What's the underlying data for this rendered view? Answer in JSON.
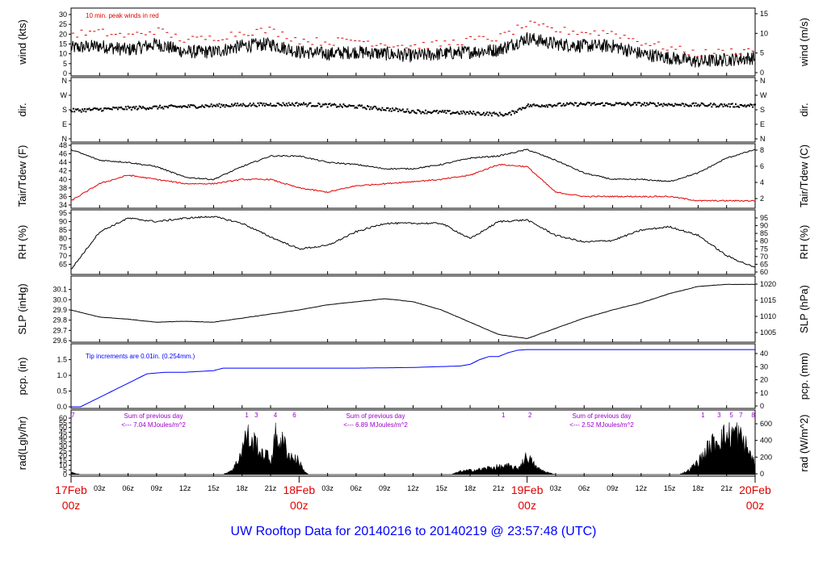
{
  "title": "UW Rooftop Data for 20140216  to  20140219 @ 23:57:48  (UTC)",
  "colors": {
    "axis": "#000000",
    "red": "#e00000",
    "blue": "#0000ff",
    "purple": "#9a00cc",
    "date_red": "#e00000"
  },
  "chart_data": {
    "type": "line",
    "time_axis": {
      "range_hours": [
        0,
        72
      ],
      "hour_ticks": [
        "03z",
        "06z",
        "09z",
        "12z",
        "15z",
        "18z",
        "21z",
        "03z",
        "06z",
        "09z",
        "12z",
        "15z",
        "18z",
        "21z",
        "03z",
        "06z",
        "09z",
        "12z",
        "15z",
        "18z",
        "21z"
      ],
      "hour_tick_positions": [
        3,
        6,
        9,
        12,
        15,
        18,
        21,
        27,
        30,
        33,
        36,
        39,
        42,
        45,
        51,
        54,
        57,
        60,
        63,
        66,
        69
      ],
      "date_labels": [
        {
          "date": "17Feb",
          "time": "00z",
          "hour": 0
        },
        {
          "date": "18Feb",
          "time": "00z",
          "hour": 24
        },
        {
          "date": "19Feb",
          "time": "00z",
          "hour": 48
        },
        {
          "date": "20Feb",
          "time": "00z",
          "hour": 72
        }
      ]
    },
    "panels": [
      {
        "id": "wind",
        "left_label": "wind (kts)",
        "right_label": "wind (m/s)",
        "left_ticks": [
          "0",
          "5",
          "10",
          "15",
          "20",
          "25",
          "30"
        ],
        "left_range": [
          0,
          30
        ],
        "right_ticks": [
          "0",
          "5",
          "10",
          "15"
        ],
        "annotation": "10 min. peak winds in red",
        "series": [
          {
            "name": "wind speed (kts)",
            "color": "#000000",
            "x": [
              0,
              3,
              6,
              9,
              12,
              15,
              18,
              21,
              24,
              27,
              30,
              33,
              36,
              39,
              42,
              45,
              48,
              51,
              54,
              57,
              60,
              63,
              66,
              69,
              72
            ],
            "y": [
              13,
              14,
              12,
              15,
              11,
              11,
              14,
              15,
              11,
              10,
              11,
              10,
              9,
              10,
              11,
              12,
              18,
              15,
              14,
              14,
              10,
              8,
              6,
              7,
              8
            ]
          },
          {
            "name": "10 min peak (kts)",
            "color": "#e00000",
            "x": [
              0,
              3,
              6,
              9,
              12,
              15,
              18,
              21,
              24,
              27,
              30,
              33,
              36,
              39,
              42,
              45,
              48,
              51,
              54,
              57,
              60,
              63,
              66,
              69,
              72
            ],
            "y": [
              20,
              21,
              19,
              22,
              17,
              18,
              21,
              22,
              17,
              16,
              17,
              15,
              14,
              15,
              17,
              18,
              25,
              22,
              21,
              21,
              16,
              13,
              10,
              11,
              12
            ]
          }
        ]
      },
      {
        "id": "dir",
        "left_label": "dir.",
        "right_label": "dir.",
        "left_ticks": [
          "N",
          "E",
          "S",
          "W",
          "N"
        ],
        "left_range": [
          0,
          360
        ],
        "right_ticks": [
          "N",
          "E",
          "S",
          "W",
          "N"
        ],
        "series": [
          {
            "name": "wind direction (deg)",
            "color": "#000000",
            "x": [
              0,
              6,
              12,
              18,
              24,
              30,
              36,
              42,
              46,
              48,
              54,
              60,
              66,
              72
            ],
            "y": [
              175,
              190,
              200,
              210,
              215,
              200,
              170,
              160,
              150,
              205,
              215,
              215,
              210,
              205
            ]
          }
        ]
      },
      {
        "id": "temp",
        "left_label": "Tair/Tdew (F)",
        "right_label": "Tair/Tdew (C)",
        "left_ticks": [
          "34",
          "36",
          "38",
          "40",
          "42",
          "44",
          "46",
          "48"
        ],
        "left_range": [
          34,
          48
        ],
        "right_ticks": [
          "2",
          "4",
          "6",
          "8"
        ],
        "series": [
          {
            "name": "Tair (F)",
            "color": "#000000",
            "x": [
              0,
              3,
              6,
              9,
              12,
              15,
              18,
              21,
              24,
              27,
              30,
              33,
              36,
              39,
              42,
              45,
              48,
              51,
              54,
              57,
              60,
              63,
              66,
              69,
              72
            ],
            "y": [
              47,
              44.5,
              44,
              43,
              40.5,
              40,
              43,
              45.5,
              45.5,
              44,
              43.5,
              42.5,
              42.5,
              43.5,
              45,
              45.5,
              47,
              44.5,
              41.5,
              40,
              40,
              39.5,
              41.5,
              45,
              47
            ]
          },
          {
            "name": "Tdew (F)",
            "color": "#e00000",
            "x": [
              0,
              3,
              6,
              9,
              12,
              15,
              18,
              21,
              24,
              27,
              30,
              33,
              36,
              39,
              42,
              45,
              48,
              51,
              54,
              57,
              60,
              63,
              66,
              69,
              72
            ],
            "y": [
              35,
              39,
              41,
              40,
              39,
              39,
              40,
              40,
              38,
              37,
              38.5,
              39,
              39.5,
              40,
              41,
              43.5,
              43,
              37,
              36,
              36,
              36,
              36,
              35,
              35,
              35
            ]
          }
        ]
      },
      {
        "id": "rh",
        "left_label": "RH (%)",
        "right_label": "RH (%)",
        "left_ticks": [
          "65",
          "70",
          "75",
          "80",
          "85",
          "90",
          "95"
        ],
        "left_range": [
          60,
          95
        ],
        "right_ticks": [
          "60",
          "65",
          "70",
          "75",
          "80",
          "85",
          "90",
          "95"
        ],
        "series": [
          {
            "name": "RH (%)",
            "color": "#000000",
            "x": [
              0,
              3,
              6,
              9,
              12,
              15,
              18,
              21,
              24,
              27,
              30,
              33,
              36,
              39,
              42,
              45,
              48,
              51,
              54,
              57,
              60,
              63,
              66,
              69,
              72
            ],
            "y": [
              62,
              84,
              92,
              90,
              92,
              93,
              89,
              81,
              74,
              76,
              84,
              89,
              89,
              89,
              80,
              90,
              91,
              82,
              78,
              79,
              85,
              87,
              82,
              70,
              63
            ]
          }
        ]
      },
      {
        "id": "slp",
        "left_label": "SLP (inHg)",
        "right_label": "SLP (hPa)",
        "left_ticks": [
          "29.6",
          "29.7",
          "29.8",
          "29.9",
          "30.0",
          "30.1"
        ],
        "left_range": [
          29.6,
          30.2
        ],
        "right_ticks": [
          "1005",
          "1010",
          "1015",
          "1020"
        ],
        "series": [
          {
            "name": "SLP (inHg)",
            "color": "#000000",
            "x": [
              0,
              3,
              6,
              9,
              12,
              15,
              18,
              21,
              24,
              27,
              30,
              33,
              36,
              39,
              42,
              45,
              48,
              51,
              54,
              57,
              60,
              63,
              66,
              69,
              72
            ],
            "y": [
              29.9,
              29.83,
              29.81,
              29.78,
              29.79,
              29.78,
              29.82,
              29.86,
              29.9,
              29.95,
              29.98,
              30.01,
              29.98,
              29.9,
              29.78,
              29.66,
              29.62,
              29.72,
              29.82,
              29.9,
              29.97,
              30.06,
              30.13,
              30.15,
              30.15
            ]
          }
        ]
      },
      {
        "id": "pcp",
        "left_label": "pcp. (in)",
        "right_label": "pcp. (mm)",
        "left_ticks": [
          "0.0",
          "0.5",
          "1.0",
          "1.5"
        ],
        "left_range": [
          0,
          1.9
        ],
        "right_ticks": [
          "0",
          "10",
          "20",
          "30",
          "40"
        ],
        "annotation": "Tip increments are 0.01in. (0.254mm.)",
        "series": [
          {
            "name": "cumulative precipitation (in)",
            "color": "#0000ff",
            "x": [
              0,
              1,
              3,
              6,
              8,
              10,
              12,
              15,
              16,
              20,
              24,
              30,
              36,
              41,
              42,
              43,
              44,
              45,
              46,
              47,
              48,
              60,
              72
            ],
            "y": [
              0,
              0,
              0.3,
              0.75,
              1.05,
              1.1,
              1.1,
              1.15,
              1.23,
              1.23,
              1.23,
              1.23,
              1.25,
              1.3,
              1.35,
              1.5,
              1.6,
              1.6,
              1.72,
              1.8,
              1.82,
              1.82,
              1.82
            ]
          }
        ]
      },
      {
        "id": "rad",
        "left_label": "rad(Lgly/hr)",
        "right_label": "rad (W/m^2)",
        "left_ticks": [
          "0",
          "5",
          "10",
          "15",
          "20",
          "25",
          "30",
          "35",
          "40",
          "45",
          "50",
          "55",
          "60"
        ],
        "left_range": [
          0,
          60
        ],
        "right_ticks": [
          "0",
          "200",
          "400",
          "600"
        ],
        "daily_sums": [
          {
            "label": "Sum of previous day",
            "value": "<--- 7.04 MJoules/m^2"
          },
          {
            "label": "Sum of previous day",
            "value": "<--- 6.89 MJoules/m^2"
          },
          {
            "label": "Sum of previous day",
            "value": "<--- 2.52 MJoules/m^2"
          }
        ],
        "tip_markers": [
          {
            "hour": 0.2,
            "label": "7"
          },
          {
            "hour": 18.5,
            "label": "1"
          },
          {
            "hour": 19.5,
            "label": "3"
          },
          {
            "hour": 21.5,
            "label": "4"
          },
          {
            "hour": 23.5,
            "label": "6"
          },
          {
            "hour": 45.5,
            "label": "1"
          },
          {
            "hour": 48.3,
            "label": "2"
          },
          {
            "hour": 66.5,
            "label": "1"
          },
          {
            "hour": 68.2,
            "label": "3"
          },
          {
            "hour": 69.5,
            "label": "5"
          },
          {
            "hour": 70.5,
            "label": "7"
          },
          {
            "hour": 71.8,
            "label": "8"
          }
        ],
        "series": [
          {
            "name": "solar radiation (Lgly/hr)",
            "color": "#000000",
            "x": [
              0,
              1,
              2,
              15,
              16,
              17,
              17.5,
              18,
              18.5,
              19,
              19.5,
              20,
              20.5,
              21,
              21.5,
              22,
              22.5,
              23,
              23.5,
              24,
              24.5,
              25,
              39,
              40,
              41,
              42,
              43,
              44,
              45,
              46,
              47,
              48,
              49,
              50,
              51,
              63,
              64,
              65,
              66,
              67,
              68,
              69,
              70,
              71,
              72
            ],
            "y": [
              3,
              0,
              0,
              0,
              0,
              6,
              15,
              30,
              48,
              35,
              40,
              22,
              25,
              15,
              45,
              40,
              35,
              22,
              20,
              15,
              5,
              0,
              0,
              0,
              4,
              5,
              6,
              8,
              9,
              10,
              7,
              22,
              8,
              3,
              0,
              0,
              0,
              5,
              15,
              30,
              42,
              45,
              50,
              35,
              12
            ]
          }
        ]
      }
    ]
  }
}
